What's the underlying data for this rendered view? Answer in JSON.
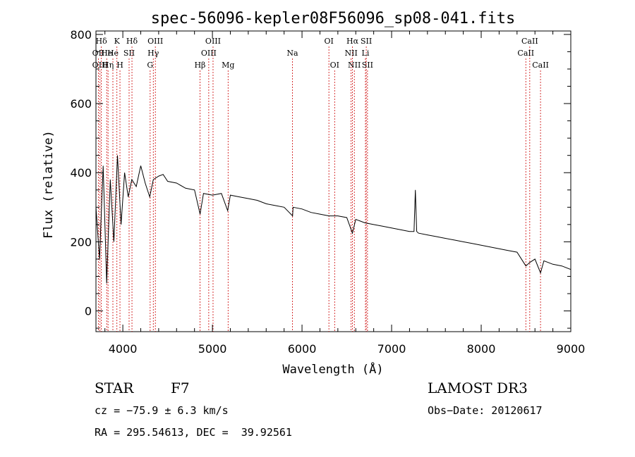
{
  "chart_data": {
    "type": "line",
    "title": "spec-56096-kepler08F56096_sp08-041.fits",
    "xlabel": "Wavelength (Å)",
    "ylabel": "Flux (relative)",
    "xlim": [
      3700,
      9000
    ],
    "ylim": [
      -60,
      810
    ],
    "xticks": [
      4000,
      5000,
      6000,
      7000,
      8000,
      9000
    ],
    "yticks": [
      0,
      200,
      400,
      600,
      800
    ],
    "spectrum": {
      "x": [
        3700,
        3740,
        3780,
        3820,
        3860,
        3900,
        3940,
        3980,
        4020,
        4060,
        4100,
        4150,
        4200,
        4250,
        4300,
        4340,
        4400,
        4450,
        4500,
        4600,
        4700,
        4800,
        4862,
        4900,
        5000,
        5100,
        5170,
        5200,
        5300,
        5400,
        5500,
        5600,
        5700,
        5800,
        5895,
        5900,
        6000,
        6100,
        6200,
        6300,
        6400,
        6500,
        6563,
        6600,
        6700,
        6800,
        6900,
        7000,
        7100,
        7200,
        7250,
        7265,
        7280,
        7300,
        7400,
        7500,
        7600,
        7700,
        7800,
        7900,
        8000,
        8100,
        8200,
        8300,
        8400,
        8498,
        8542,
        8600,
        8662,
        8700,
        8800,
        8900,
        9000
      ],
      "y": [
        300,
        150,
        420,
        80,
        380,
        200,
        450,
        250,
        400,
        330,
        380,
        360,
        420,
        370,
        330,
        380,
        390,
        395,
        375,
        370,
        355,
        350,
        280,
        340,
        335,
        340,
        290,
        335,
        330,
        325,
        320,
        310,
        305,
        300,
        275,
        300,
        295,
        285,
        280,
        275,
        275,
        270,
        225,
        265,
        255,
        250,
        245,
        240,
        235,
        230,
        230,
        350,
        230,
        225,
        220,
        215,
        210,
        205,
        200,
        195,
        190,
        185,
        180,
        175,
        170,
        130,
        140,
        150,
        110,
        145,
        135,
        130,
        120
      ]
    },
    "lines": [
      {
        "label": "Hδ",
        "x": 3760,
        "row": 1
      },
      {
        "label": "OII",
        "x": 3727,
        "row": 2
      },
      {
        "label": "OIII",
        "x": 3745,
        "row": 3
      },
      {
        "label": "He",
        "x": 3820,
        "row": 2
      },
      {
        "label": "Hη",
        "x": 3835,
        "row": 3
      },
      {
        "label": "K",
        "x": 3934,
        "row": 1
      },
      {
        "label": "He",
        "x": 3889,
        "row": 2
      },
      {
        "label": "H",
        "x": 3968,
        "row": 3
      },
      {
        "label": "Hδ",
        "x": 4102,
        "row": 1
      },
      {
        "label": "SII",
        "x": 4070,
        "row": 2
      },
      {
        "label": "OIII",
        "x": 4363,
        "row": 1
      },
      {
        "label": "Hγ",
        "x": 4340,
        "row": 2
      },
      {
        "label": "G",
        "x": 4305,
        "row": 3
      },
      {
        "label": "OIII",
        "x": 5007,
        "row": 1
      },
      {
        "label": "OIII",
        "x": 4959,
        "row": 2
      },
      {
        "label": "Hβ",
        "x": 4861,
        "row": 3
      },
      {
        "label": "Mg",
        "x": 5175,
        "row": 3
      },
      {
        "label": "Na",
        "x": 5893,
        "row": 2
      },
      {
        "label": "OI",
        "x": 6300,
        "row": 1
      },
      {
        "label": "OI",
        "x": 6364,
        "row": 3
      },
      {
        "label": "Hα",
        "x": 6563,
        "row": 1
      },
      {
        "label": "NII",
        "x": 6548,
        "row": 2
      },
      {
        "label": "NII",
        "x": 6584,
        "row": 3
      },
      {
        "label": "SII",
        "x": 6717,
        "row": 1
      },
      {
        "label": "Li",
        "x": 6708,
        "row": 2
      },
      {
        "label": "SII",
        "x": 6731,
        "row": 3
      },
      {
        "label": "CaII",
        "x": 8542,
        "row": 1
      },
      {
        "label": "CaII",
        "x": 8498,
        "row": 2
      },
      {
        "label": "CaII",
        "x": 8662,
        "row": 3
      }
    ]
  },
  "info": {
    "object_type": "STAR",
    "subclass": "F7",
    "survey": "LAMOST DR3",
    "cz": "cz = −75.9 ± 6.3 km/s",
    "obs_date": "Obs−Date: 20120617",
    "coords": "RA = 295.54613, DEC =  39.92561"
  },
  "colors": {
    "spectrum": "#000000",
    "line_markers": "#cc0000",
    "axes": "#000000",
    "background": "#ffffff"
  }
}
